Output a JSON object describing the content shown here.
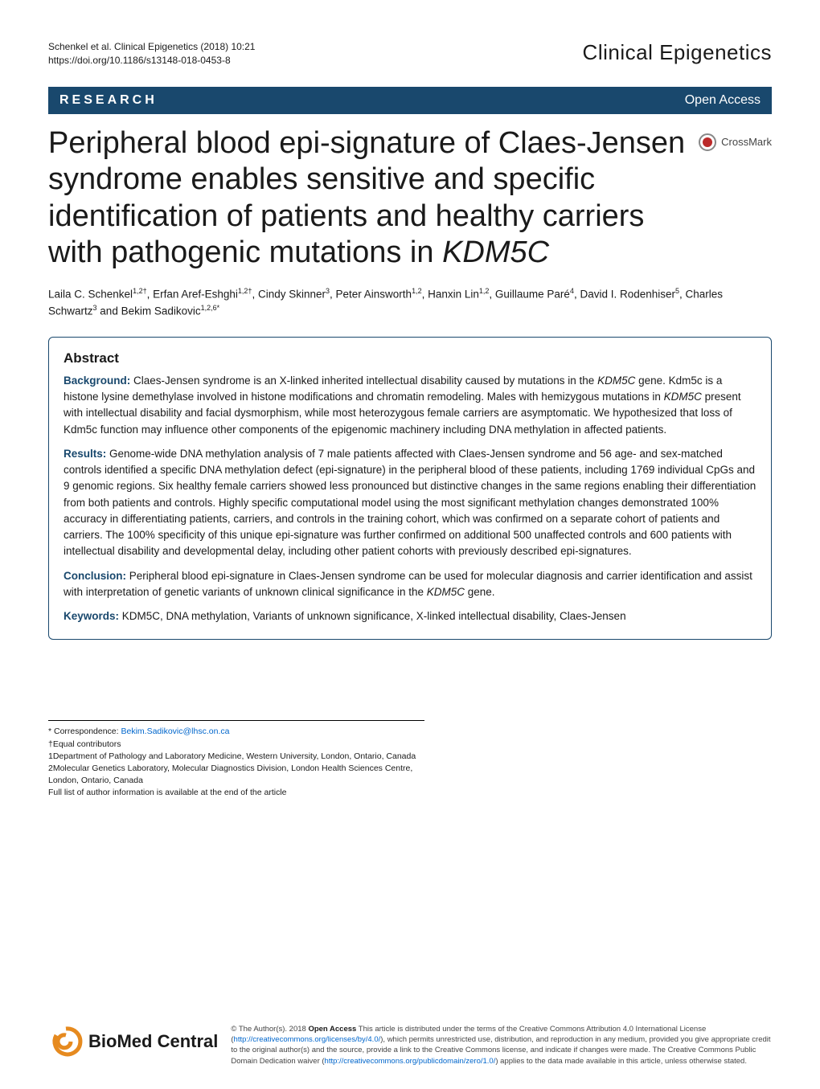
{
  "header": {
    "citation_line1": "Schenkel et al. Clinical Epigenetics  (2018) 10:21",
    "citation_line2": "https://doi.org/10.1186/s13148-018-0453-8",
    "journal_brand": "Clinical Epigenetics"
  },
  "bar": {
    "research_label": "RESEARCH",
    "open_access": "Open Access"
  },
  "title_html": "Peripheral blood epi-signature of Claes-Jensen syndrome enables sensitive and specific identification of patients and healthy carriers with pathogenic mutations in <em>KDM5C</em>",
  "crossmark": {
    "label": "CrossMark"
  },
  "authors_html": "Laila C. Schenkel<sup>1,2†</sup>, Erfan Aref-Eshghi<sup>1,2†</sup>, Cindy Skinner<sup>3</sup>, Peter Ainsworth<sup>1,2</sup>, Hanxin Lin<sup>1,2</sup>, Guillaume Paré<sup>4</sup>, David I. Rodenhiser<sup>5</sup>, Charles Schwartz<sup>3</sup> and Bekim Sadikovic<sup>1,2,6*</sup>",
  "abstract": {
    "heading": "Abstract",
    "background": {
      "lead": "Background:",
      "text_html": " Claes-Jensen syndrome is an X-linked inherited intellectual disability caused by mutations in the <em>KDM5C</em> gene. Kdm5c is a histone lysine demethylase involved in histone modifications and chromatin remodeling. Males with hemizygous mutations in <em>KDM5C</em> present with intellectual disability and facial dysmorphism, while most heterozygous female carriers are asymptomatic. We hypothesized that loss of Kdm5c function may influence other components of the epigenomic machinery including DNA methylation in affected patients."
    },
    "results": {
      "lead": "Results:",
      "text_html": " Genome-wide DNA methylation analysis of 7 male patients affected with Claes-Jensen syndrome and 56 age- and sex-matched controls identified a specific DNA methylation defect (epi-signature) in the peripheral blood of these patients, including 1769 individual CpGs and 9 genomic regions. Six healthy female carriers showed less pronounced but distinctive changes in the same regions enabling their differentiation from both patients and controls. Highly specific computational model using the most significant methylation changes demonstrated 100% accuracy in differentiating patients, carriers, and controls in the training cohort, which was confirmed on a separate cohort of patients and carriers. The 100% specificity of this unique epi-signature was further confirmed on additional 500 unaffected controls and 600 patients with intellectual disability and developmental delay, including other patient cohorts with previously described epi-signatures."
    },
    "conclusion": {
      "lead": "Conclusion:",
      "text_html": " Peripheral blood epi-signature in Claes-Jensen syndrome can be used for molecular diagnosis and carrier identification and assist with interpretation of genetic variants of unknown clinical significance in the <em>KDM5C</em> gene."
    },
    "keywords": {
      "lead": "Keywords:",
      "text": " KDM5C, DNA methylation, Variants of unknown significance, X-linked intellectual disability, Claes-Jensen"
    }
  },
  "footnotes": {
    "correspondence_label": "* Correspondence: ",
    "correspondence_email": "Bekim.Sadikovic@lhsc.on.ca",
    "equal": "†Equal contributors",
    "affil1": "1Department of Pathology and Laboratory Medicine, Western University, London, Ontario, Canada",
    "affil2": "2Molecular Genetics Laboratory, Molecular Diagnostics Division, London Health Sciences Centre, London, Ontario, Canada",
    "full_list": "Full list of author information is available at the end of the article"
  },
  "footer": {
    "bmc_text_html": "<span class='bold'>BioMed</span> Central",
    "license_html": "© The Author(s). 2018 <b>Open Access</b> This article is distributed under the terms of the Creative Commons Attribution 4.0 International License (<a href='#'>http://creativecommons.org/licenses/by/4.0/</a>), which permits unrestricted use, distribution, and reproduction in any medium, provided you give appropriate credit to the original author(s) and the source, provide a link to the Creative Commons license, and indicate if changes were made. The Creative Commons Public Domain Dedication waiver (<a href='#'>http://creativecommons.org/publicdomain/zero/1.0/</a>) applies to the data made available in this article, unless otherwise stated."
  },
  "colors": {
    "bar_bg": "#19486d",
    "bar_text": "#ffffff",
    "lead_color": "#19486d",
    "link_color": "#0066cc",
    "bmc_swirl": "#e68a1f",
    "crossmark_red": "#bb2a2a"
  }
}
